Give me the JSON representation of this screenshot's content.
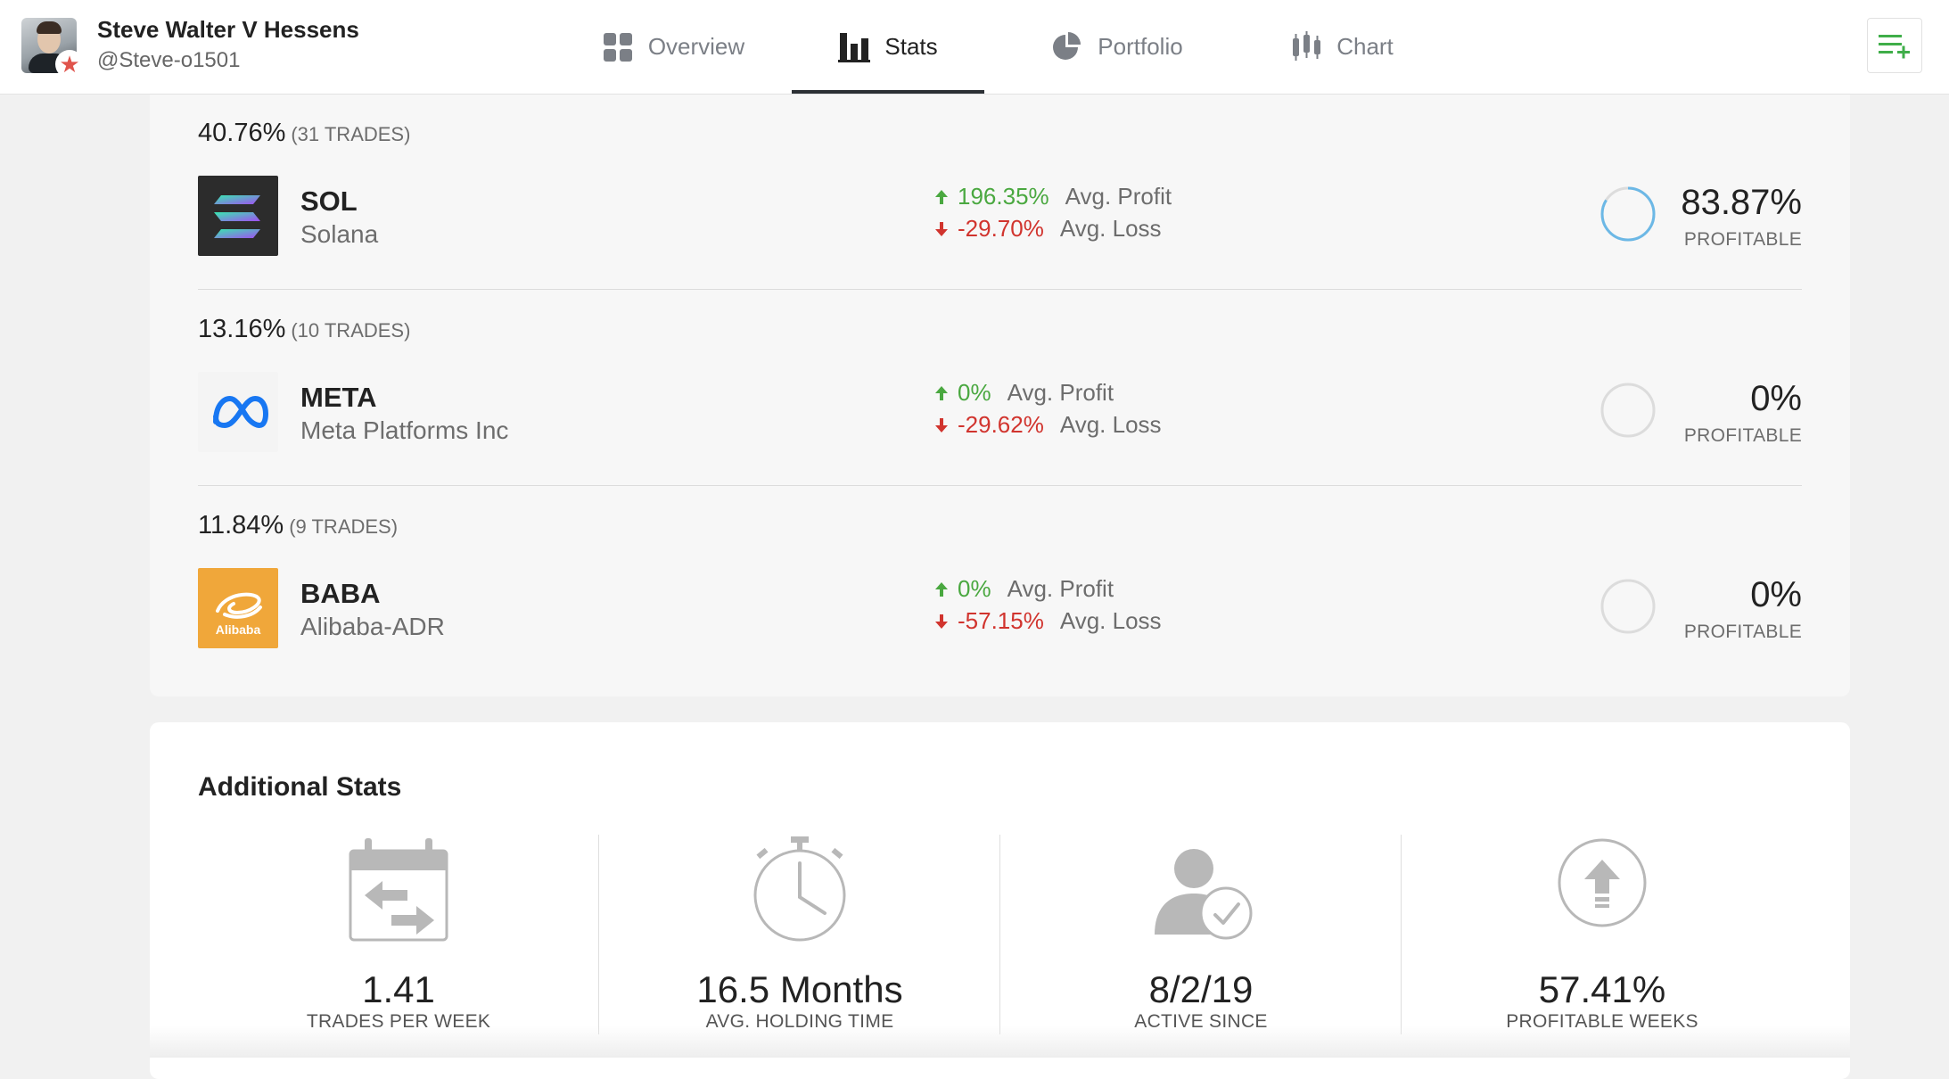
{
  "user": {
    "name": "Steve Walter V Hessens",
    "handle": "@Steve-o1501"
  },
  "nav": {
    "tabs": [
      {
        "label": "Overview",
        "icon": "grid-icon"
      },
      {
        "label": "Stats",
        "icon": "bar-chart-icon",
        "active": true
      },
      {
        "label": "Portfolio",
        "icon": "pie-chart-icon"
      },
      {
        "label": "Chart",
        "icon": "candlestick-icon"
      }
    ],
    "menu_icon": "list-add-icon"
  },
  "assets": [
    {
      "share": "40.76%",
      "trades": "(31 TRADES)",
      "ticker": "SOL",
      "name": "Solana",
      "avg_profit": "196.35%",
      "avg_profit_label": "Avg. Profit",
      "avg_loss": "-29.70%",
      "avg_loss_label": "Avg. Loss",
      "profitable": "83.87%",
      "profitable_label": "PROFITABLE",
      "profitable_fraction": 0.8387
    },
    {
      "share": "13.16%",
      "trades": "(10 TRADES)",
      "ticker": "META",
      "name": "Meta Platforms Inc",
      "avg_profit": "0%",
      "avg_profit_label": "Avg. Profit",
      "avg_loss": "-29.62%",
      "avg_loss_label": "Avg. Loss",
      "profitable": "0%",
      "profitable_label": "PROFITABLE",
      "profitable_fraction": 0
    },
    {
      "share": "11.84%",
      "trades": "(9 TRADES)",
      "ticker": "BABA",
      "name": "Alibaba-ADR",
      "avg_profit": "0%",
      "avg_profit_label": "Avg. Profit",
      "avg_loss": "-57.15%",
      "avg_loss_label": "Avg. Loss",
      "profitable": "0%",
      "profitable_label": "PROFITABLE",
      "profitable_fraction": 0,
      "logo_text": "Alibaba"
    }
  ],
  "additional": {
    "title": "Additional Stats",
    "items": [
      {
        "value": "1.41",
        "label": "TRADES PER WEEK",
        "icon": "calendar-transfer-icon"
      },
      {
        "value": "16.5 Months",
        "label": "AVG. HOLDING TIME",
        "icon": "stopwatch-icon"
      },
      {
        "value": "8/2/19",
        "label": "ACTIVE SINCE",
        "icon": "user-check-icon"
      },
      {
        "value": "57.41%",
        "label": "PROFITABLE WEEKS",
        "icon": "upload-circle-icon"
      }
    ]
  },
  "colors": {
    "profit_green": "#4aa840",
    "loss_red": "#d1342e",
    "ring_blue": "#6cb8e6",
    "accent_green": "#3fae49"
  }
}
